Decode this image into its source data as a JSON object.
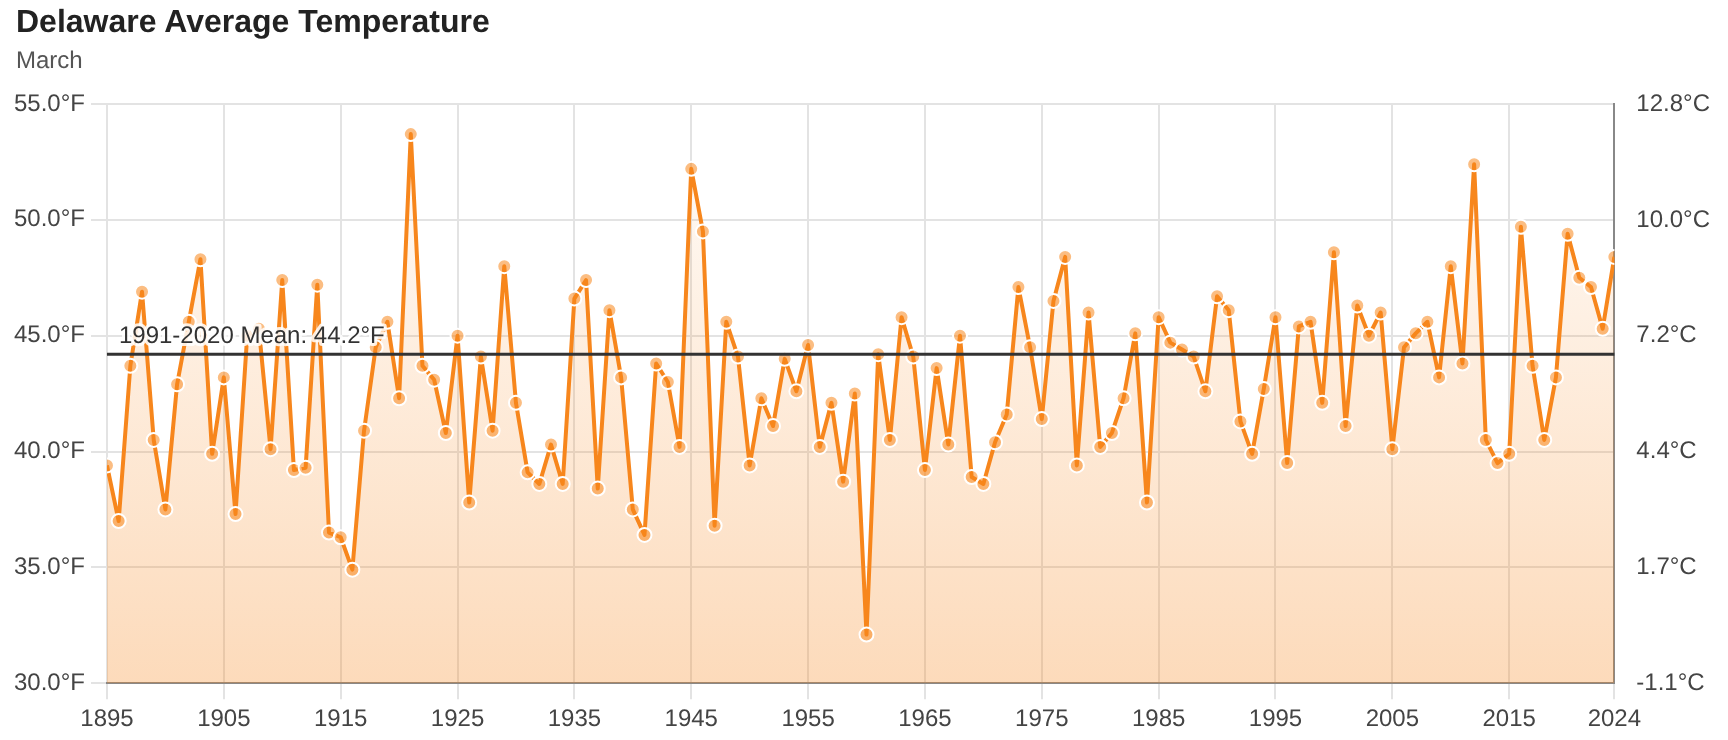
{
  "chart_data": {
    "type": "area",
    "title": "Delaware Average Temperature",
    "subtitle": "March",
    "x": [
      1895,
      1896,
      1897,
      1898,
      1899,
      1900,
      1901,
      1902,
      1903,
      1904,
      1905,
      1906,
      1907,
      1908,
      1909,
      1910,
      1911,
      1912,
      1913,
      1914,
      1915,
      1916,
      1917,
      1918,
      1919,
      1920,
      1921,
      1922,
      1923,
      1924,
      1925,
      1926,
      1927,
      1928,
      1929,
      1930,
      1931,
      1932,
      1933,
      1934,
      1935,
      1936,
      1937,
      1938,
      1939,
      1940,
      1941,
      1942,
      1943,
      1944,
      1945,
      1946,
      1947,
      1948,
      1949,
      1950,
      1951,
      1952,
      1953,
      1954,
      1955,
      1956,
      1957,
      1958,
      1959,
      1960,
      1961,
      1962,
      1963,
      1964,
      1965,
      1966,
      1967,
      1968,
      1969,
      1970,
      1971,
      1972,
      1973,
      1974,
      1975,
      1976,
      1977,
      1978,
      1979,
      1980,
      1981,
      1982,
      1983,
      1984,
      1985,
      1986,
      1987,
      1988,
      1989,
      1990,
      1991,
      1992,
      1993,
      1994,
      1995,
      1996,
      1997,
      1998,
      1999,
      2000,
      2001,
      2002,
      2003,
      2004,
      2005,
      2006,
      2007,
      2008,
      2009,
      2010,
      2011,
      2012,
      2013,
      2014,
      2015,
      2016,
      2017,
      2018,
      2019,
      2020,
      2021,
      2022,
      2023,
      2024
    ],
    "series": [
      {
        "color": "#f7861c",
        "values": [
          39.4,
          37.0,
          43.7,
          46.9,
          40.5,
          37.5,
          42.9,
          45.6,
          48.3,
          39.9,
          43.2,
          37.3,
          45.0,
          45.3,
          40.1,
          47.4,
          39.2,
          39.3,
          47.2,
          36.5,
          36.3,
          34.9,
          40.9,
          44.5,
          45.6,
          42.3,
          53.7,
          43.7,
          43.1,
          40.8,
          45.0,
          37.8,
          44.1,
          40.9,
          48.0,
          42.1,
          39.1,
          38.6,
          40.3,
          38.6,
          46.6,
          47.4,
          38.4,
          46.1,
          43.2,
          37.5,
          36.4,
          43.8,
          43.0,
          40.2,
          52.2,
          49.5,
          36.8,
          45.6,
          44.1,
          39.4,
          42.3,
          41.1,
          44.0,
          42.6,
          44.6,
          40.2,
          42.1,
          38.7,
          42.5,
          32.1,
          44.2,
          40.5,
          45.8,
          44.1,
          39.2,
          43.6,
          40.3,
          45.0,
          38.9,
          38.6,
          40.4,
          41.6,
          47.1,
          44.5,
          41.4,
          46.5,
          48.4,
          39.4,
          46.0,
          40.2,
          40.8,
          42.3,
          45.1,
          37.8,
          45.8,
          44.7,
          44.4,
          44.1,
          42.6,
          46.7,
          46.1,
          41.3,
          39.9,
          42.7,
          45.8,
          39.5,
          45.4,
          45.6,
          42.1,
          48.6,
          41.1,
          46.3,
          45.0,
          46.0,
          40.1,
          44.5,
          45.1,
          45.6,
          43.2,
          48.0,
          43.8,
          52.4,
          40.5,
          39.5,
          39.9,
          49.7,
          43.7,
          40.5,
          43.2,
          49.4,
          47.5,
          47.1,
          45.3,
          48.4
        ]
      }
    ],
    "xlim": [
      1895,
      2024
    ],
    "xticks": [
      1895,
      1905,
      1915,
      1925,
      1935,
      1945,
      1955,
      1965,
      1975,
      1985,
      1995,
      2005,
      2015,
      2024
    ],
    "ylim": [
      30,
      55
    ],
    "yticks": [
      {
        "value": 30,
        "label": "30.0°F"
      },
      {
        "value": 35,
        "label": "35.0°F"
      },
      {
        "value": 40,
        "label": "40.0°F"
      },
      {
        "value": 45,
        "label": "45.0°F"
      },
      {
        "value": 50,
        "label": "50.0°F"
      },
      {
        "value": 55,
        "label": "55.0°F"
      }
    ],
    "y2lim": [
      -1.11,
      12.78
    ],
    "y2ticks": [
      {
        "value": -1.11,
        "label": "-1.1°C"
      },
      {
        "value": 1.67,
        "label": "1.7°C"
      },
      {
        "value": 4.44,
        "label": "4.4°C"
      },
      {
        "value": 7.22,
        "label": "7.2°C"
      },
      {
        "value": 10,
        "label": "10.0°C"
      },
      {
        "value": 12.78,
        "label": "12.8°C"
      }
    ],
    "ref_lines": [
      {
        "axis": "y",
        "value": 44.2,
        "label": "1991-2020 Mean: 44.2°F",
        "color": "#333333"
      }
    ],
    "grid": true,
    "marker": "circle",
    "line_style": "solid"
  }
}
